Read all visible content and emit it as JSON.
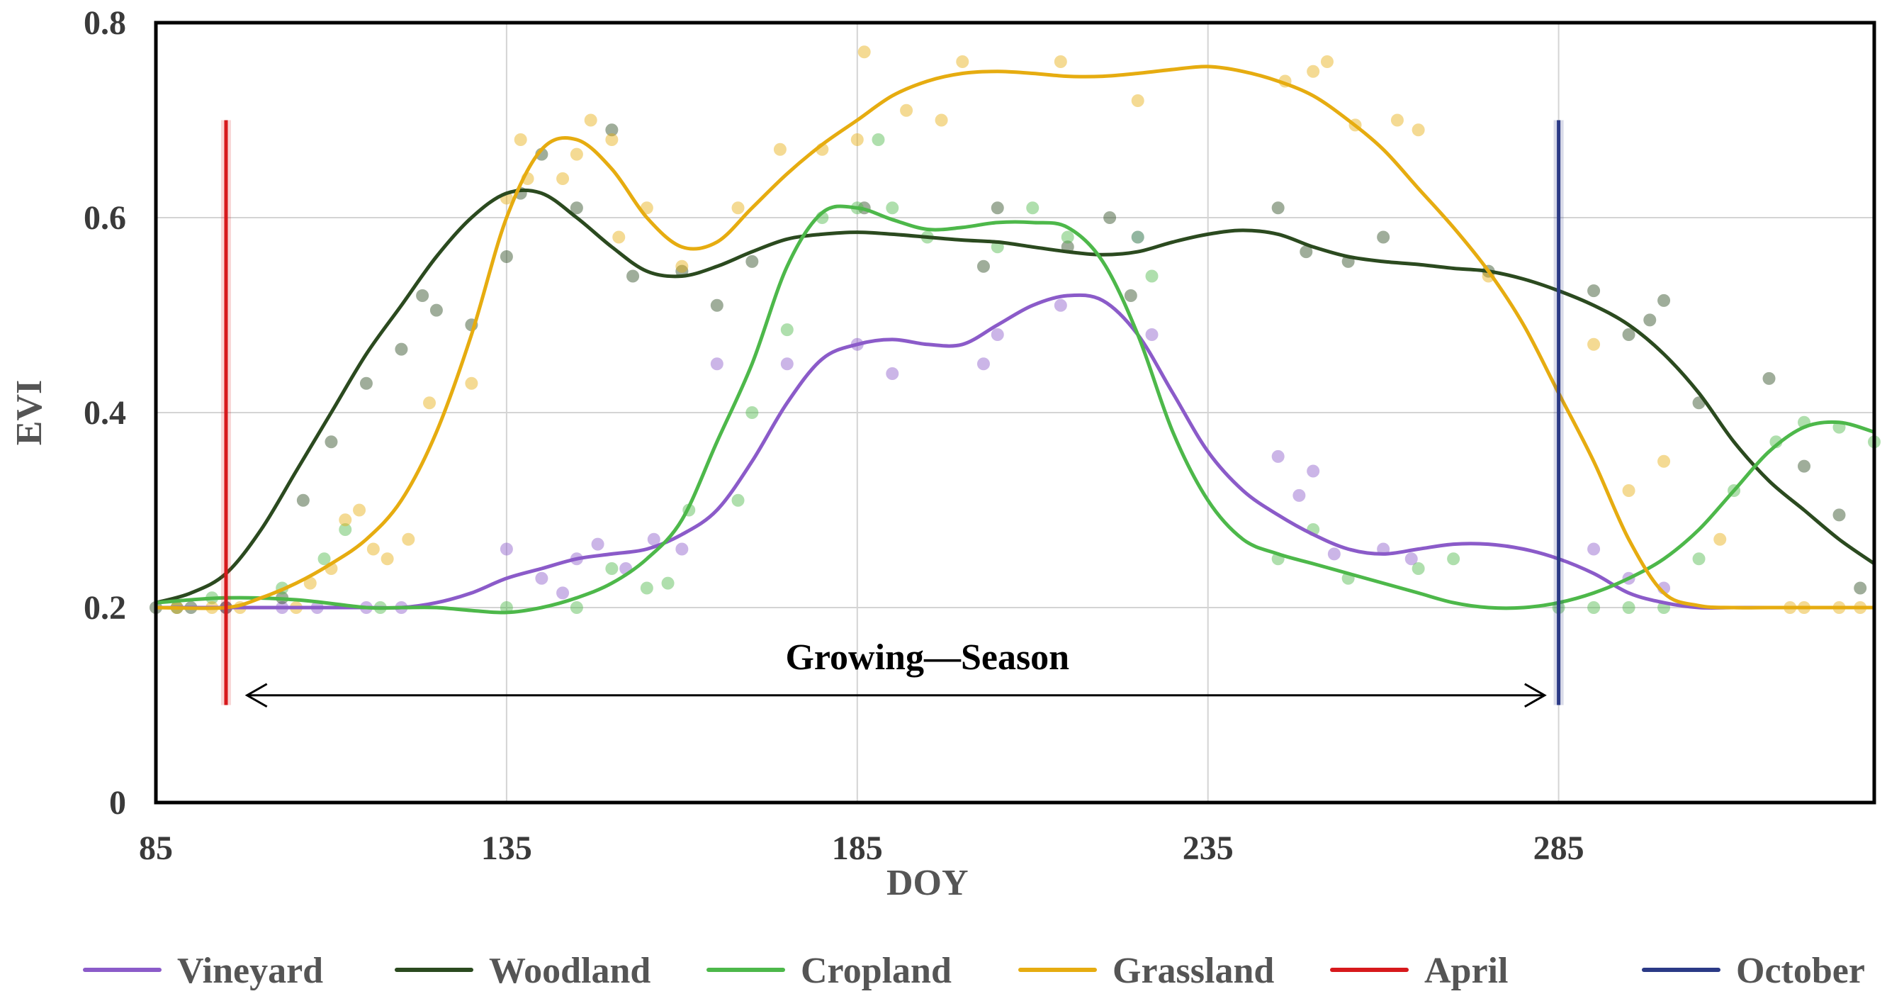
{
  "chart_data": {
    "type": "line",
    "title": "",
    "xlabel": "DOY",
    "ylabel": "EVI",
    "xlim": [
      85,
      330
    ],
    "ylim": [
      0,
      0.8
    ],
    "xticks": [
      85,
      135,
      185,
      235,
      285
    ],
    "xtick_labels": [
      "85",
      "135",
      "185",
      "235",
      "285"
    ],
    "yticks": [
      0,
      0.2,
      0.4,
      0.6,
      0.8
    ],
    "ytick_labels": [
      "0",
      "0.2",
      "0.4",
      "0.6",
      "0.8"
    ],
    "grid": true,
    "legend_position": "bottom",
    "annotation": {
      "text": "Growing—Season",
      "arrow_from_x": 98,
      "arrow_to_x": 283,
      "arrow_y": 0.11,
      "text_x": 195,
      "text_y": 0.15
    },
    "vertical_lines": [
      {
        "name": "April",
        "x": 95,
        "y_range": [
          0.1,
          0.7
        ],
        "color": "#d7191c"
      },
      {
        "name": "October",
        "x": 285,
        "y_range": [
          0.1,
          0.7
        ],
        "color": "#2b3a86"
      }
    ],
    "series": [
      {
        "name": "Vineyard",
        "color": "#8b5bc9",
        "line": {
          "x": [
            85,
            95,
            105,
            115,
            120,
            125,
            130,
            135,
            140,
            145,
            150,
            155,
            160,
            165,
            170,
            175,
            180,
            185,
            190,
            195,
            200,
            205,
            210,
            215,
            220,
            225,
            230,
            235,
            240,
            245,
            250,
            255,
            260,
            265,
            270,
            275,
            280,
            285,
            290,
            295,
            300,
            305,
            310,
            315,
            320,
            325,
            330
          ],
          "y": [
            0.2,
            0.2,
            0.2,
            0.2,
            0.2,
            0.205,
            0.215,
            0.23,
            0.24,
            0.25,
            0.255,
            0.26,
            0.275,
            0.3,
            0.35,
            0.41,
            0.455,
            0.47,
            0.475,
            0.47,
            0.47,
            0.49,
            0.51,
            0.52,
            0.515,
            0.48,
            0.42,
            0.36,
            0.32,
            0.295,
            0.275,
            0.26,
            0.255,
            0.26,
            0.265,
            0.265,
            0.26,
            0.25,
            0.235,
            0.215,
            0.205,
            0.2,
            0.2,
            0.2,
            0.2,
            0.2,
            0.2
          ]
        },
        "points": {
          "x": [
            88,
            95,
            103,
            108,
            115,
            120,
            135,
            140,
            143,
            145,
            148,
            152,
            156,
            160,
            165,
            175,
            185,
            190,
            203,
            205,
            214,
            225,
            227,
            245,
            248,
            250,
            253,
            260,
            264,
            290,
            295,
            300
          ],
          "y": [
            0.2,
            0.2,
            0.2,
            0.2,
            0.2,
            0.2,
            0.26,
            0.23,
            0.215,
            0.25,
            0.265,
            0.24,
            0.27,
            0.26,
            0.45,
            0.45,
            0.47,
            0.44,
            0.45,
            0.48,
            0.51,
            0.58,
            0.48,
            0.355,
            0.315,
            0.34,
            0.255,
            0.26,
            0.25,
            0.26,
            0.23,
            0.22
          ]
        }
      },
      {
        "name": "Woodland",
        "color": "#2b4a1f",
        "line": {
          "x": [
            85,
            90,
            95,
            100,
            105,
            110,
            115,
            120,
            125,
            130,
            135,
            140,
            145,
            150,
            155,
            160,
            165,
            170,
            175,
            180,
            185,
            190,
            195,
            200,
            205,
            210,
            215,
            220,
            225,
            230,
            235,
            240,
            245,
            250,
            255,
            260,
            265,
            270,
            275,
            280,
            285,
            290,
            295,
            300,
            305,
            310,
            315,
            320,
            325,
            330
          ],
          "y": [
            0.205,
            0.215,
            0.235,
            0.28,
            0.34,
            0.4,
            0.46,
            0.51,
            0.56,
            0.6,
            0.625,
            0.625,
            0.6,
            0.57,
            0.545,
            0.54,
            0.55,
            0.565,
            0.578,
            0.583,
            0.585,
            0.583,
            0.58,
            0.577,
            0.575,
            0.57,
            0.565,
            0.562,
            0.565,
            0.575,
            0.583,
            0.587,
            0.583,
            0.57,
            0.56,
            0.555,
            0.552,
            0.548,
            0.545,
            0.537,
            0.525,
            0.51,
            0.49,
            0.46,
            0.42,
            0.37,
            0.33,
            0.3,
            0.27,
            0.245
          ]
        },
        "points": {
          "x": [
            85,
            90,
            95,
            103,
            106,
            110,
            115,
            120,
            123,
            125,
            130,
            135,
            137,
            140,
            145,
            150,
            153,
            160,
            165,
            170,
            186,
            203,
            205,
            215,
            221,
            224,
            245,
            249,
            255,
            260,
            275,
            290,
            295,
            298,
            300,
            305,
            315,
            320,
            325,
            328
          ],
          "y": [
            0.2,
            0.2,
            0.2,
            0.21,
            0.31,
            0.37,
            0.43,
            0.465,
            0.52,
            0.505,
            0.49,
            0.56,
            0.625,
            0.665,
            0.61,
            0.69,
            0.54,
            0.545,
            0.51,
            0.555,
            0.61,
            0.55,
            0.61,
            0.57,
            0.6,
            0.52,
            0.61,
            0.565,
            0.555,
            0.58,
            0.545,
            0.525,
            0.48,
            0.495,
            0.515,
            0.41,
            0.435,
            0.345,
            0.295,
            0.22
          ]
        }
      },
      {
        "name": "Cropland",
        "color": "#4db84a",
        "line": {
          "x": [
            85,
            95,
            105,
            115,
            120,
            125,
            130,
            135,
            140,
            145,
            150,
            155,
            160,
            165,
            170,
            175,
            180,
            185,
            190,
            195,
            200,
            205,
            210,
            215,
            220,
            225,
            230,
            235,
            240,
            245,
            250,
            255,
            260,
            265,
            270,
            275,
            280,
            285,
            290,
            295,
            300,
            305,
            310,
            315,
            320,
            325,
            330
          ],
          "y": [
            0.205,
            0.21,
            0.208,
            0.2,
            0.2,
            0.2,
            0.197,
            0.195,
            0.2,
            0.21,
            0.225,
            0.25,
            0.29,
            0.37,
            0.45,
            0.55,
            0.605,
            0.61,
            0.598,
            0.588,
            0.59,
            0.595,
            0.595,
            0.59,
            0.555,
            0.48,
            0.38,
            0.31,
            0.27,
            0.255,
            0.245,
            0.235,
            0.225,
            0.215,
            0.205,
            0.2,
            0.2,
            0.205,
            0.215,
            0.23,
            0.25,
            0.28,
            0.32,
            0.36,
            0.385,
            0.39,
            0.38
          ]
        },
        "points": {
          "x": [
            88,
            93,
            103,
            109,
            112,
            117,
            135,
            145,
            150,
            155,
            158,
            161,
            168,
            170,
            175,
            180,
            185,
            188,
            190,
            195,
            205,
            210,
            215,
            225,
            227,
            245,
            250,
            255,
            265,
            270,
            285,
            290,
            295,
            300,
            305,
            310,
            316,
            320,
            325,
            330
          ],
          "y": [
            0.2,
            0.21,
            0.22,
            0.25,
            0.28,
            0.2,
            0.2,
            0.2,
            0.24,
            0.22,
            0.225,
            0.3,
            0.31,
            0.4,
            0.485,
            0.6,
            0.61,
            0.68,
            0.61,
            0.58,
            0.57,
            0.61,
            0.58,
            0.58,
            0.54,
            0.25,
            0.28,
            0.23,
            0.24,
            0.25,
            0.2,
            0.2,
            0.2,
            0.2,
            0.25,
            0.32,
            0.37,
            0.39,
            0.385,
            0.37
          ]
        }
      },
      {
        "name": "Grassland",
        "color": "#e6ac10",
        "line": {
          "x": [
            85,
            95,
            100,
            105,
            110,
            115,
            120,
            125,
            130,
            135,
            140,
            145,
            150,
            155,
            160,
            165,
            170,
            175,
            180,
            185,
            190,
            195,
            200,
            205,
            210,
            215,
            220,
            225,
            230,
            235,
            240,
            245,
            250,
            255,
            260,
            265,
            270,
            275,
            280,
            285,
            290,
            295,
            300,
            305,
            310,
            315,
            320,
            325,
            330
          ],
          "y": [
            0.2,
            0.2,
            0.21,
            0.225,
            0.245,
            0.27,
            0.31,
            0.38,
            0.48,
            0.6,
            0.67,
            0.68,
            0.65,
            0.6,
            0.57,
            0.575,
            0.61,
            0.645,
            0.675,
            0.7,
            0.725,
            0.74,
            0.748,
            0.75,
            0.748,
            0.745,
            0.745,
            0.748,
            0.752,
            0.755,
            0.75,
            0.74,
            0.725,
            0.7,
            0.67,
            0.63,
            0.59,
            0.545,
            0.49,
            0.42,
            0.35,
            0.27,
            0.215,
            0.202,
            0.2,
            0.2,
            0.2,
            0.2,
            0.2
          ]
        },
        "points": {
          "x": [
            88,
            93,
            97,
            105,
            107,
            110,
            112,
            114,
            116,
            118,
            121,
            124,
            130,
            135,
            137,
            138,
            143,
            145,
            147,
            150,
            151,
            155,
            160,
            168,
            174,
            180,
            185,
            186,
            192,
            197,
            200,
            214,
            225,
            246,
            250,
            252,
            256,
            262,
            265,
            275,
            290,
            295,
            300,
            308,
            318,
            320,
            325,
            328
          ],
          "y": [
            0.2,
            0.2,
            0.2,
            0.2,
            0.225,
            0.24,
            0.29,
            0.3,
            0.26,
            0.25,
            0.27,
            0.41,
            0.43,
            0.62,
            0.68,
            0.64,
            0.64,
            0.665,
            0.7,
            0.68,
            0.58,
            0.61,
            0.55,
            0.61,
            0.67,
            0.67,
            0.68,
            0.77,
            0.71,
            0.7,
            0.76,
            0.76,
            0.72,
            0.74,
            0.75,
            0.76,
            0.695,
            0.7,
            0.69,
            0.54,
            0.47,
            0.32,
            0.35,
            0.27,
            0.2,
            0.2,
            0.2,
            0.2
          ]
        }
      }
    ],
    "legend": [
      {
        "name": "Vineyard",
        "color": "#8b5bc9"
      },
      {
        "name": "Woodland",
        "color": "#2b4a1f"
      },
      {
        "name": "Cropland",
        "color": "#4db84a"
      },
      {
        "name": "Grassland",
        "color": "#e6ac10"
      },
      {
        "name": "April",
        "color": "#d7191c"
      },
      {
        "name": "October",
        "color": "#2b3a86"
      }
    ]
  }
}
